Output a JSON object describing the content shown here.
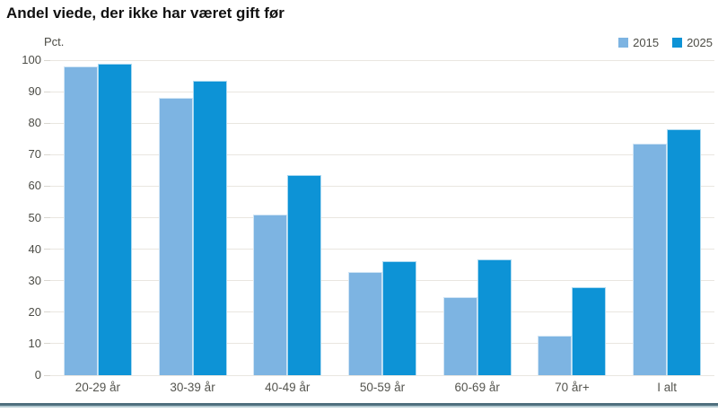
{
  "page": {
    "title": "Andel viede, der ikke har været gift før"
  },
  "chart_data": {
    "type": "bar",
    "title": "Andel viede, der ikke har været gift før",
    "unit_label": "Pct.",
    "categories": [
      "20-29 år",
      "30-39 år",
      "40-49 år",
      "50-59 år",
      "60-69 år",
      "70 år+",
      "I alt"
    ],
    "series": [
      {
        "name": "2015",
        "color": "#7db4e2",
        "values": [
          98.1,
          88.1,
          50.9,
          32.8,
          24.7,
          12.6,
          73.5
        ]
      },
      {
        "name": "2025",
        "color": "#0d93d6",
        "values": [
          98.8,
          93.5,
          63.6,
          36.2,
          36.8,
          27.9,
          78.2
        ]
      }
    ],
    "ylim": [
      0,
      100
    ],
    "ytick_step": 10,
    "grid": "horizontal",
    "legend_position": "top-right",
    "colors": {
      "gridline": "#e9e6e0",
      "axis_text": "#4c4c46",
      "footer_rule_dark": "#4f6f7e",
      "footer_rule_light": "#b3cad1"
    }
  }
}
